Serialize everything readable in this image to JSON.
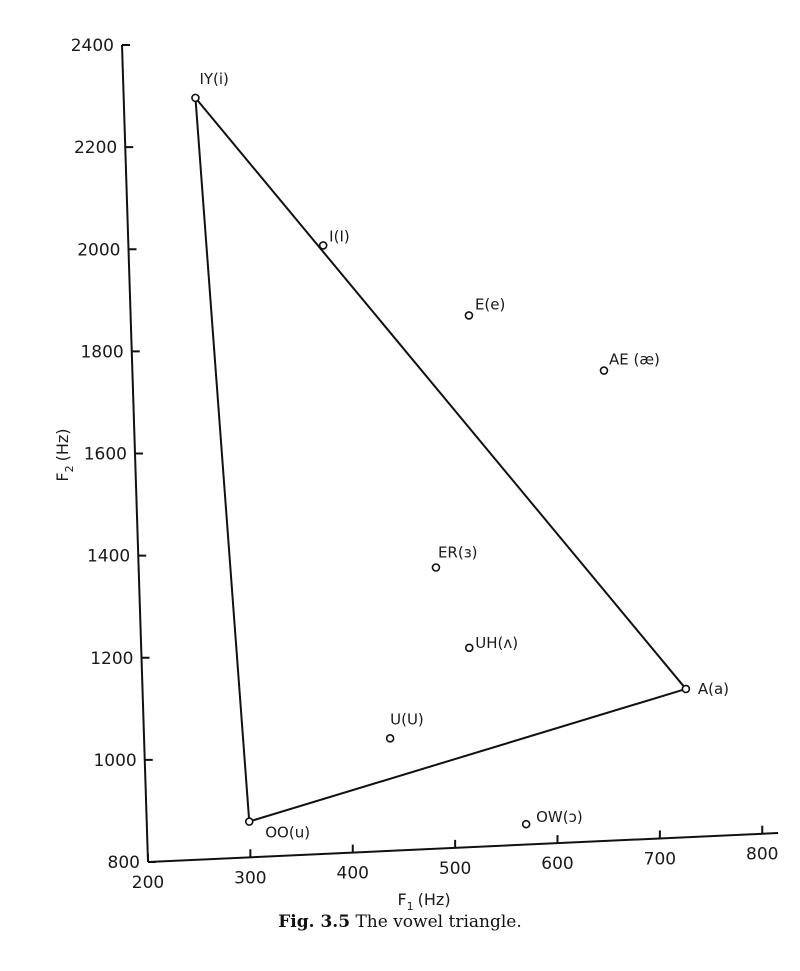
{
  "chart_data": {
    "type": "scatter",
    "title": "",
    "xlabel": "F1 (Hz)",
    "ylabel": "F2 (Hz)",
    "xlim": [
      200,
      800
    ],
    "ylim": [
      800,
      2400
    ],
    "x_ticks": [
      200,
      300,
      400,
      500,
      600,
      700,
      800
    ],
    "y_ticks": [
      800,
      1000,
      1200,
      1400,
      1600,
      1800,
      2000,
      2200,
      2400
    ],
    "grid": false,
    "points": [
      {
        "label": "IY(i)",
        "x": 270,
        "y": 2290
      },
      {
        "label": "I(I)",
        "x": 390,
        "y": 1990
      },
      {
        "label": "E(e)",
        "x": 530,
        "y": 1840
      },
      {
        "label": "AE (æ)",
        "x": 660,
        "y": 1720
      },
      {
        "label": "ER(ɜ)",
        "x": 490,
        "y": 1350
      },
      {
        "label": "UH(ʌ)",
        "x": 520,
        "y": 1190
      },
      {
        "label": "U(U)",
        "x": 440,
        "y": 1020
      },
      {
        "label": "A(a)",
        "x": 730,
        "y": 1090
      },
      {
        "label": "OO(u)",
        "x": 300,
        "y": 870
      },
      {
        "label": "OW(ɔ)",
        "x": 570,
        "y": 840
      }
    ],
    "triangle": [
      "IY(i)",
      "A(a)",
      "OO(u)"
    ]
  },
  "axis": {
    "x_label_main": "F",
    "x_label_sub": "1",
    "x_label_unit": "(Hz)",
    "y_label_main": "F",
    "y_label_sub": "2",
    "y_label_unit": "(Hz)"
  },
  "caption": {
    "figure": "Fig. 3.5",
    "text": "The vowel triangle."
  }
}
